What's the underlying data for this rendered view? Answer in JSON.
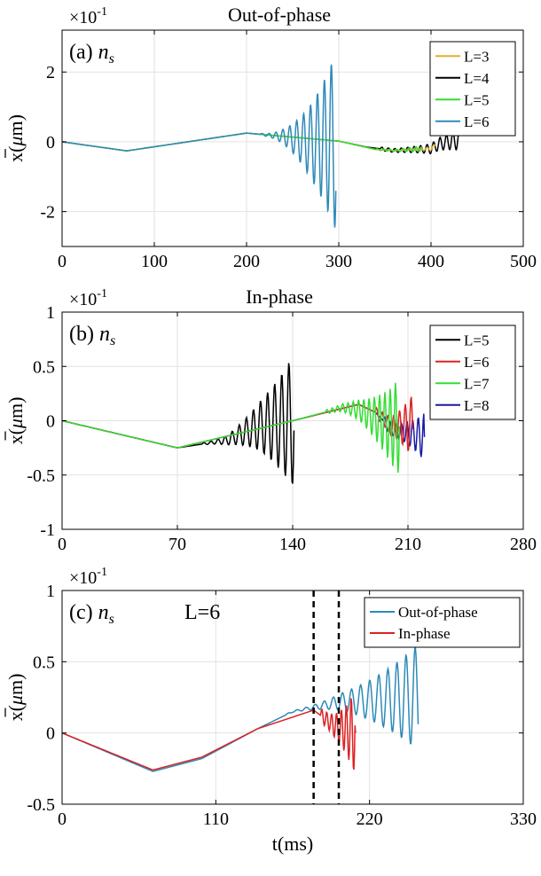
{
  "panels": [
    {
      "type": "line",
      "title": "Out-of-phase",
      "label_prefix": "(a) ",
      "label_var": "n",
      "label_sub": "s",
      "extra_label": "",
      "exponent_base": "×10",
      "exponent_power": "-1",
      "ylabel_main": "x(",
      "ylabel_mu": "μ",
      "ylabel_rest": "m)",
      "xlabel": "",
      "xlim": [
        0,
        500
      ],
      "ylim": [
        -3,
        3.2
      ],
      "xticks": [
        0,
        100,
        200,
        300,
        400,
        500
      ],
      "xticklabels": [
        "0",
        "100",
        "200",
        "300",
        "400",
        "500"
      ],
      "yticks": [
        -2,
        0,
        2
      ],
      "yticklabels": [
        "-2",
        "0",
        "2"
      ],
      "legend": [
        {
          "name": "L=3",
          "color": "#e0b030"
        },
        {
          "name": "L=4",
          "color": "#000000"
        },
        {
          "name": "L=5",
          "color": "#33dd33"
        },
        {
          "name": "L=6",
          "color": "#2e8ab8"
        }
      ],
      "vlines": [],
      "series": [
        {
          "name": "L=4",
          "color": "#000000",
          "points": [
            [
              0,
              0
            ],
            [
              70,
              -0.26
            ],
            [
              200,
              0.25
            ],
            [
              300,
              0.02
            ],
            [
              330,
              -0.15
            ],
            [
              360,
              -0.25
            ],
            [
              400,
              -0.2
            ],
            [
              410,
              -0.05
            ],
            [
              430,
              0.06
            ]
          ],
          "osc": {
            "t0": 345,
            "t1": 432,
            "a0": 0.05,
            "a1": 0.3,
            "period": 7
          }
        },
        {
          "name": "L=3",
          "color": "#e0b030",
          "points": [
            [
              0,
              0
            ],
            [
              70,
              -0.26
            ],
            [
              200,
              0.25
            ],
            [
              300,
              0.02
            ],
            [
              340,
              -0.22
            ],
            [
              360,
              -0.25
            ],
            [
              400,
              -0.2
            ],
            [
              405,
              -0.1
            ]
          ],
          "osc": {
            "t0": 380,
            "t1": 406,
            "a0": 0.03,
            "a1": 0.06,
            "period": 7
          }
        },
        {
          "name": "L=5",
          "color": "#33dd33",
          "points": [
            [
              0,
              0
            ],
            [
              70,
              -0.26
            ],
            [
              200,
              0.25
            ],
            [
              300,
              0.02
            ],
            [
              340,
              -0.22
            ],
            [
              360,
              -0.25
            ],
            [
              390,
              -0.2
            ]
          ],
          "osc": {
            "t0": 340,
            "t1": 390,
            "a0": 0.02,
            "a1": 0.08,
            "period": 7
          }
        },
        {
          "name": "L=6",
          "color": "#2e8ab8",
          "points": [
            [
              0,
              0
            ],
            [
              70,
              -0.26
            ],
            [
              200,
              0.25
            ],
            [
              240,
              0.15
            ],
            [
              270,
              0.0
            ],
            [
              297,
              0.0
            ]
          ],
          "osc": {
            "t0": 215,
            "t1": 297,
            "a0": 0.03,
            "a1": 2.55,
            "period": 7.5
          }
        }
      ]
    },
    {
      "type": "line",
      "title": "In-phase",
      "label_prefix": "(b) ",
      "label_var": "n",
      "label_sub": "s",
      "extra_label": "",
      "exponent_base": "×10",
      "exponent_power": "-1",
      "ylabel_main": "x(",
      "ylabel_mu": "μ",
      "ylabel_rest": "m)",
      "xlabel": "",
      "xlim": [
        0,
        280
      ],
      "ylim": [
        -1,
        1
      ],
      "xticks": [
        0,
        70,
        140,
        210,
        280
      ],
      "xticklabels": [
        "0",
        "70",
        "140",
        "210",
        "280"
      ],
      "yticks": [
        -1,
        -0.5,
        0,
        0.5,
        1
      ],
      "yticklabels": [
        "-1",
        "-0.5",
        "0",
        "0.5",
        "1"
      ],
      "legend": [
        {
          "name": "L=5",
          "color": "#000000"
        },
        {
          "name": "L=6",
          "color": "#dd2222"
        },
        {
          "name": "L=7",
          "color": "#33dd33"
        },
        {
          "name": "L=8",
          "color": "#1a1aa6"
        }
      ],
      "vlines": [],
      "series": [
        {
          "name": "L=5",
          "color": "#000000",
          "points": [
            [
              0,
              0
            ],
            [
              70,
              -0.25
            ],
            [
              100,
              -0.18
            ],
            [
              120,
              -0.05
            ],
            [
              141,
              0.0
            ]
          ],
          "osc": {
            "t0": 85,
            "t1": 141,
            "a0": 0.01,
            "a1": 0.62,
            "period": 4.3
          }
        },
        {
          "name": "L=8",
          "color": "#1a1aa6",
          "points": [
            [
              0,
              0
            ],
            [
              70,
              -0.25
            ],
            [
              140,
              0.0
            ],
            [
              180,
              0.15
            ],
            [
              190,
              0.08
            ],
            [
              200,
              -0.08
            ],
            [
              220,
              -0.15
            ]
          ],
          "osc": {
            "t0": 195,
            "t1": 220,
            "a0": 0.05,
            "a1": 0.22,
            "period": 3.4
          }
        },
        {
          "name": "L=6",
          "color": "#dd2222",
          "points": [
            [
              0,
              0
            ],
            [
              70,
              -0.25
            ],
            [
              140,
              0.0
            ],
            [
              180,
              0.15
            ],
            [
              190,
              0.08
            ],
            [
              200,
              -0.05
            ],
            [
              213,
              -0.05
            ]
          ],
          "osc": {
            "t0": 190,
            "t1": 213,
            "a0": 0.05,
            "a1": 0.3,
            "period": 3.5
          }
        },
        {
          "name": "L=7",
          "color": "#33dd33",
          "points": [
            [
              0,
              0
            ],
            [
              70,
              -0.25
            ],
            [
              140,
              0.0
            ],
            [
              170,
              0.12
            ],
            [
              180,
              0.1
            ],
            [
              200,
              -0.05
            ],
            [
              205,
              -0.05
            ]
          ],
          "osc": {
            "t0": 160,
            "t1": 205,
            "a0": 0.02,
            "a1": 0.45,
            "period": 3.2
          }
        }
      ]
    },
    {
      "type": "line",
      "title": "",
      "label_prefix": "(c) ",
      "label_var": "n",
      "label_sub": "s",
      "extra_label": "L=6",
      "exponent_base": "×10",
      "exponent_power": "-1",
      "ylabel_main": "x(",
      "ylabel_mu": "μ",
      "ylabel_rest": "m)",
      "xlabel": "t(ms)",
      "xlim": [
        0,
        330
      ],
      "ylim": [
        -0.5,
        1
      ],
      "xticks": [
        0,
        110,
        220,
        330
      ],
      "xticklabels": [
        "0",
        "110",
        "220",
        "330"
      ],
      "yticks": [
        -0.5,
        0,
        0.5,
        1
      ],
      "yticklabels": [
        "-0.5",
        "0",
        "0.5",
        "1"
      ],
      "legend": [
        {
          "name": "Out-of-phase",
          "color": "#2e8ab8"
        },
        {
          "name": "In-phase",
          "color": "#dd2222"
        }
      ],
      "vlines": [
        180,
        198
      ],
      "series": [
        {
          "name": "Out-of-phase",
          "color": "#2e8ab8",
          "points": [
            [
              0,
              0
            ],
            [
              65,
              -0.27
            ],
            [
              100,
              -0.18
            ],
            [
              140,
              0.03
            ],
            [
              165,
              0.15
            ],
            [
              180,
              0.18
            ],
            [
              200,
              0.22
            ],
            [
              255,
              0.25
            ]
          ],
          "osc": {
            "t0": 160,
            "t1": 258,
            "a0": 0.005,
            "a1": 0.4,
            "period": 6.5
          }
        },
        {
          "name": "In-phase",
          "color": "#dd2222",
          "points": [
            [
              0,
              0
            ],
            [
              65,
              -0.26
            ],
            [
              100,
              -0.17
            ],
            [
              140,
              0.03
            ],
            [
              180,
              0.16
            ],
            [
              195,
              0.05
            ],
            [
              210,
              0.0
            ]
          ],
          "osc": {
            "t0": 185,
            "t1": 210,
            "a0": 0.05,
            "a1": 0.3,
            "period": 3.5
          }
        }
      ]
    }
  ]
}
